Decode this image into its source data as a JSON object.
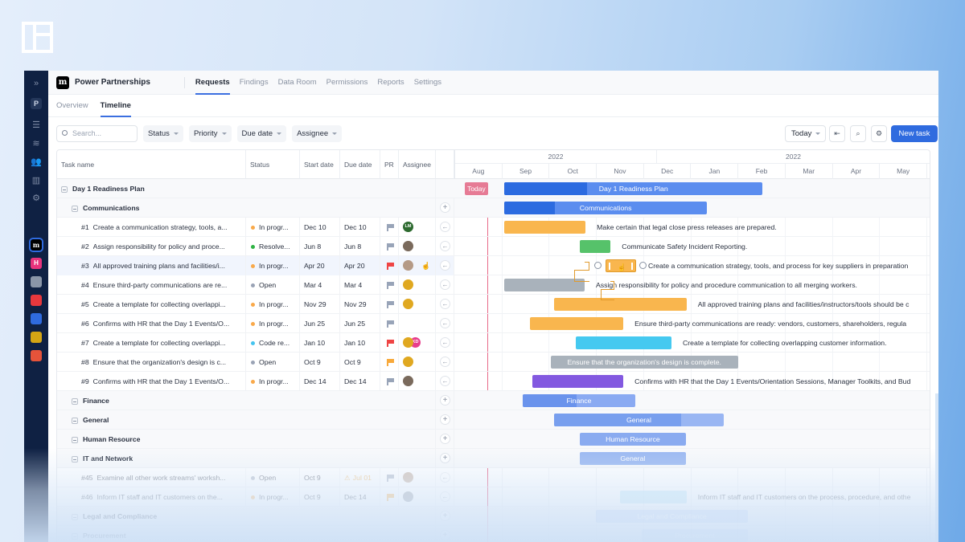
{
  "app": {
    "project": "Power Partnerships",
    "logo_letter": "m"
  },
  "sidebar": {
    "project_badge": "P",
    "icons": [
      "expand-icon",
      "list-icon",
      "layers-icon",
      "users-icon",
      "chart-icon",
      "gear-icon"
    ],
    "apps": [
      {
        "color": "#000000",
        "letter": "m"
      },
      {
        "color": "#e8337c",
        "letter": "H"
      },
      {
        "color": "#8a96a8",
        "letter": ""
      },
      {
        "color": "#e8383d",
        "letter": ""
      },
      {
        "color": "#2f6bdf",
        "letter": ""
      },
      {
        "color": "#d4a514",
        "letter": ""
      },
      {
        "color": "#e5533a",
        "letter": ""
      }
    ]
  },
  "nav": {
    "tabs": [
      "Requests",
      "Findings",
      "Data Room",
      "Permissions",
      "Reports",
      "Settings"
    ],
    "active": 0
  },
  "subnav": {
    "tabs": [
      "Overview",
      "Timeline"
    ],
    "active": 1
  },
  "toolbar": {
    "search_placeholder": "Search...",
    "filters": [
      "Status",
      "Priority",
      "Due date",
      "Assignee"
    ],
    "today": "Today",
    "new_task": "New task"
  },
  "table": {
    "headers": [
      "Task name",
      "Status",
      "Start date",
      "Due date",
      "PR",
      "Assignee"
    ]
  },
  "timeline": {
    "years": [
      "2022",
      "2022"
    ],
    "months": [
      "Aug",
      "Sep",
      "Oct",
      "Nov",
      "Dec",
      "Jan",
      "Feb",
      "Mar",
      "Apr",
      "May"
    ],
    "today_label": "Today",
    "today_month": 0.7
  },
  "colors": {
    "in_progress": "#f9a94a",
    "resolved": "#2fb344",
    "open": "#9aa3b5",
    "code_review": "#45c4ef",
    "flag_gray": "#98a4b8",
    "flag_red": "#ef4444",
    "flag_orange": "#f8a93a"
  },
  "rows": [
    {
      "type": "group",
      "name": "Day 1 Readiness Plan",
      "bar": {
        "start": 1.06,
        "end": 6.53,
        "progress": 0.32,
        "color": "#5b8def",
        "dark": "#2c6be0",
        "label": "Day 1 Readiness Plan"
      }
    },
    {
      "type": "section",
      "name": "Communications",
      "bar": {
        "start": 1.06,
        "end": 5.35,
        "progress": 0.25,
        "color": "#5b8def",
        "dark": "#2c6be0",
        "label": "Communications"
      }
    },
    {
      "type": "task",
      "id": "#1",
      "name": "Create a communication strategy, tools, a...",
      "status": "In progr...",
      "status_color": "#f9a94a",
      "start": "Dec 10",
      "due": "Dec 10",
      "flag": "#98a4b8",
      "assignees": [
        {
          "initials": "LM",
          "color": "#2d6a2f"
        }
      ],
      "bar": {
        "start": 1.06,
        "end": 2.78,
        "color": "#f9b64e",
        "text": "Make certain that legal close press releases are prepared."
      }
    },
    {
      "type": "task",
      "id": "#2",
      "name": "Assign responsibility for policy and proce...",
      "status": "Resolve...",
      "status_color": "#2fb344",
      "start": "Jun 8",
      "due": "Jun 8",
      "flag": "#98a4b8",
      "assignees": [
        {
          "initials": "",
          "color": "#7a6a5c"
        }
      ],
      "bar": {
        "start": 2.66,
        "end": 3.31,
        "color": "#56c26a",
        "text": "Communicate Safety Incident Reporting."
      }
    },
    {
      "type": "task",
      "id": "#3",
      "name": "All approved training plans and facilities/i...",
      "status": "In progr...",
      "status_color": "#f9a94a",
      "start": "Apr 20",
      "due": "Apr 20",
      "flag": "#ef4444",
      "assignees": [
        {
          "initials": "",
          "color": "#b59a86"
        }
      ],
      "highlight": true,
      "bar": {
        "start": 3.2,
        "end": 3.85,
        "color": "#f9b64e",
        "selected": true,
        "text": "Create a communication strategy, tools, and process for key suppliers in preparation"
      }
    },
    {
      "type": "task",
      "id": "#4",
      "name": "Ensure third-party communications are re...",
      "status": "Open",
      "status_color": "#9aa3b5",
      "start": "Mar 4",
      "due": "Mar 4",
      "flag": "#98a4b8",
      "assignees": [
        {
          "initials": "",
          "color": "#e0a820"
        }
      ],
      "bar": {
        "start": 1.06,
        "end": 2.76,
        "color": "#a9b2bb",
        "text": "Assign responsibility for policy and procedure communication to all merging workers."
      }
    },
    {
      "type": "task",
      "id": "#5",
      "name": "Create a template for collecting overlappi...",
      "status": "In progr...",
      "status_color": "#f9a94a",
      "start": "Nov 29",
      "due": "Nov 29",
      "flag": "#98a4b8",
      "assignees": [
        {
          "initials": "",
          "color": "#e0a820"
        }
      ],
      "bar": {
        "start": 2.11,
        "end": 4.92,
        "color": "#f9b64e",
        "text": "All approved training plans and facilities/instructors/tools should be c"
      }
    },
    {
      "type": "task",
      "id": "#6",
      "name": "Confirms with HR that the Day 1 Events/O...",
      "status": "In progr...",
      "status_color": "#f9a94a",
      "start": "Jun 25",
      "due": "Jun 25",
      "flag": "#98a4b8",
      "assignees": [],
      "bar": {
        "start": 1.6,
        "end": 3.58,
        "color": "#f9b64e",
        "text": "Ensure third-party communications are ready: vendors, customers, shareholders, regula"
      }
    },
    {
      "type": "task",
      "id": "#7",
      "name": "Create a template for collecting overlappi...",
      "status": "Code re...",
      "status_color": "#45c4ef",
      "start": "Jan 10",
      "due": "Jan 10",
      "flag": "#ef4444",
      "assignees": [
        {
          "initials": "",
          "color": "#e0a820"
        },
        {
          "initials": "KD",
          "color": "#e83e8c"
        }
      ],
      "bar": {
        "start": 2.57,
        "end": 4.6,
        "color": "#45c9f0",
        "text": "Create a template for collecting overlapping customer information."
      }
    },
    {
      "type": "task",
      "id": "#8",
      "name": "Ensure that the organization's design is c...",
      "status": "Open",
      "status_color": "#9aa3b5",
      "start": "Oct 9",
      "due": "Oct 9",
      "flag": "#f8a93a",
      "assignees": [
        {
          "initials": "",
          "color": "#e0a820"
        }
      ],
      "bar": {
        "start": 2.04,
        "end": 6.01,
        "color": "#a9b2bb",
        "label": "Ensure that the organization's design is complete."
      }
    },
    {
      "type": "task",
      "id": "#9",
      "name": "Confirms with HR that the Day 1 Events/O...",
      "status": "In progr...",
      "status_color": "#f9a94a",
      "start": "Dec 14",
      "due": "Dec 14",
      "flag": "#98a4b8",
      "assignees": [
        {
          "initials": "",
          "color": "#7a6a5c"
        }
      ],
      "bar": {
        "start": 1.65,
        "end": 3.58,
        "color": "#8359e0",
        "text": "Confirms with HR that the Day 1 Events/Orientation Sessions, Manager Toolkits, and Bud"
      }
    },
    {
      "type": "section",
      "name": "Finance",
      "bar": {
        "start": 1.45,
        "end": 3.83,
        "progress": 0.48,
        "color": "#8aaaf2",
        "dark": "#6a93ec",
        "label": "Finance"
      }
    },
    {
      "type": "section",
      "name": "General",
      "bar": {
        "start": 2.11,
        "end": 5.71,
        "progress": 0.75,
        "color": "#99b6f3",
        "dark": "#789fee",
        "label": "General"
      }
    },
    {
      "type": "section",
      "name": "Human Resource",
      "bar": {
        "start": 2.66,
        "end": 4.9,
        "progress": 0,
        "color": "#8aabf0",
        "dark": "#8aabf0",
        "label": "Human Resource"
      }
    },
    {
      "type": "section",
      "name": "IT and Network",
      "bar": {
        "start": 2.66,
        "end": 4.9,
        "progress": 0,
        "color": "#9bb8f1",
        "dark": "#9bb8f1",
        "label": "General"
      }
    },
    {
      "type": "task",
      "id": "#45",
      "name": "Examine all other work streams' worksh...",
      "status": "Open",
      "status_color": "#9aa3b5",
      "start": "Oct 9",
      "due": "Jul 01",
      "due_warning": true,
      "flag": "#98a4b8",
      "assignees": [
        {
          "initials": "",
          "color": "#b59a86"
        }
      ],
      "faded": true
    },
    {
      "type": "task",
      "id": "#46",
      "name": "Inform IT staff and IT customers on the...",
      "status": "In progr...",
      "status_color": "#f9a94a",
      "start": "Oct 9",
      "due": "Dec 14",
      "flag": "#f8a93a",
      "assignees": [
        {
          "initials": "",
          "color": "#8a8f99"
        }
      ],
      "faded": true,
      "bar": {
        "start": 3.51,
        "end": 4.92,
        "color": "#b7e4f7",
        "text": "Inform IT staff and IT customers on the process, procedure, and othe"
      }
    },
    {
      "type": "section",
      "name": "Legal and Compliance",
      "faded": true,
      "bar": {
        "start": 3.0,
        "end": 6.22,
        "progress": 0,
        "color": "#c3d5f6",
        "dark": "#c3d5f6",
        "label": "Legal and Compliance"
      }
    },
    {
      "type": "section",
      "name": "Procurement",
      "faded": true,
      "bar": {
        "start": 3.97,
        "end": 6.22,
        "progress": 0,
        "color": "#c9daf6",
        "dark": "#c9daf6",
        "label": "Procurement"
      }
    }
  ]
}
